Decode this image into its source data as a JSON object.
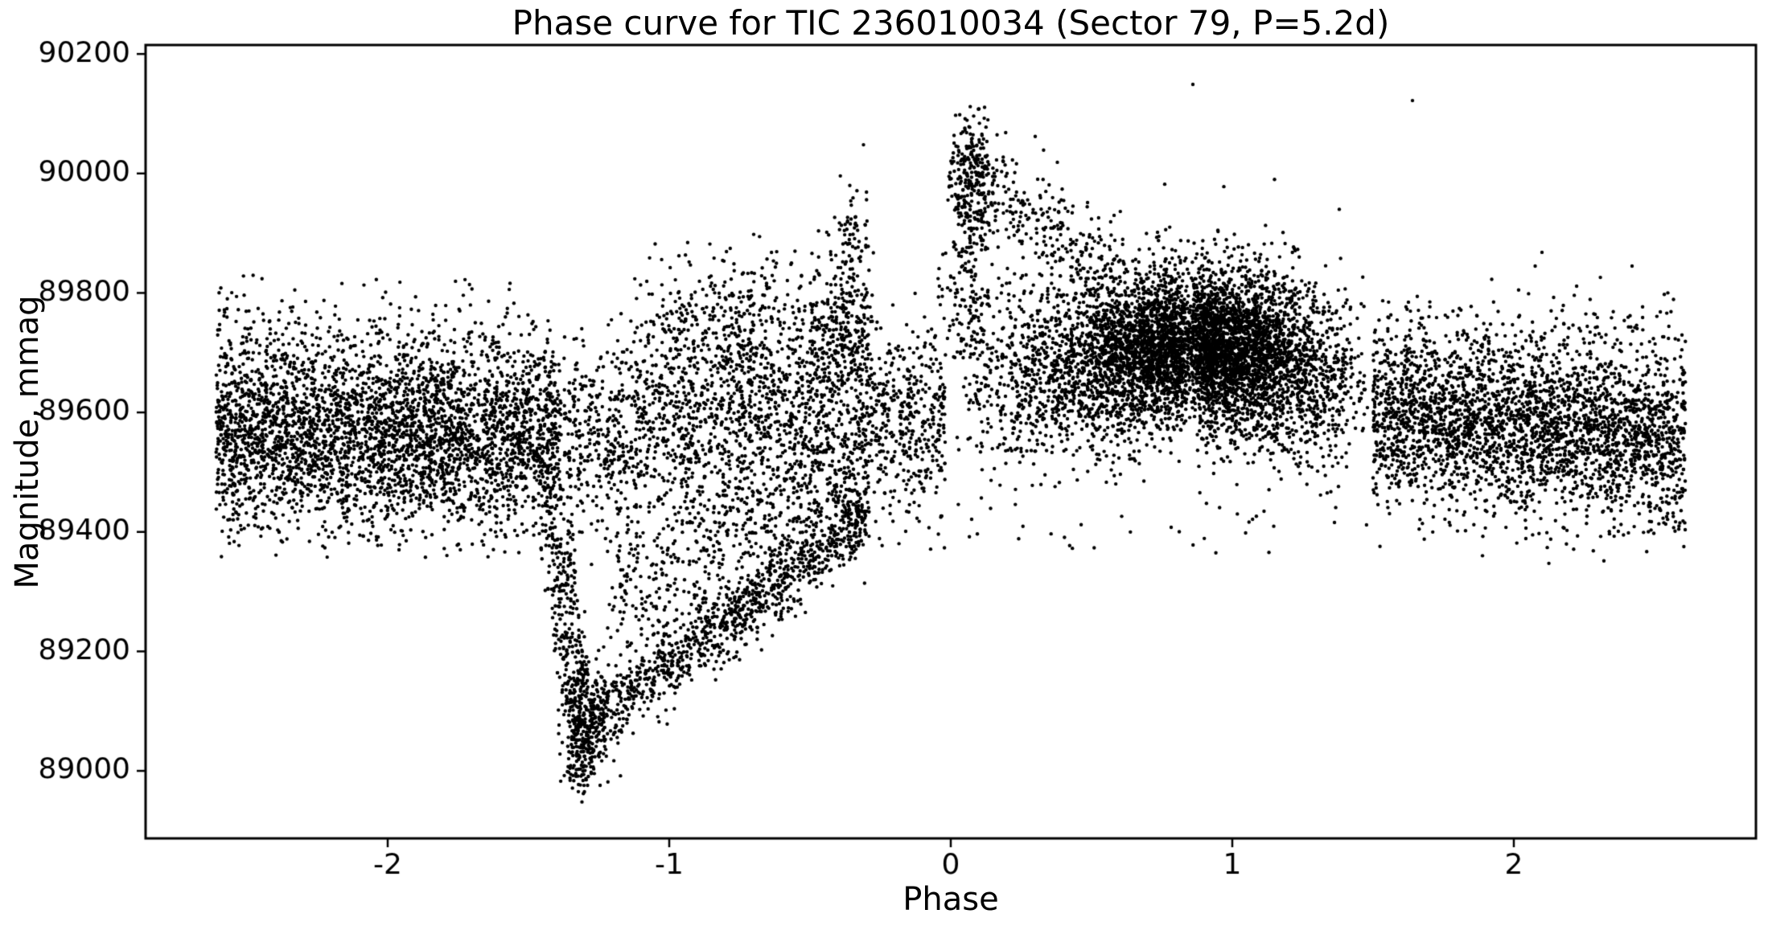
{
  "chart_data": {
    "type": "scatter",
    "title": "Phase curve for TIC 236010034 (Sector 79, P=5.2d)",
    "xlabel": "Phase",
    "ylabel": "Magnitude, mmag",
    "xlim": [
      -2.86,
      2.86
    ],
    "ylim": [
      88887,
      90215
    ],
    "xticks": [
      -2,
      -1,
      0,
      1,
      2
    ],
    "yticks": [
      89000,
      89200,
      89400,
      89600,
      89800,
      90000,
      90200
    ],
    "grid": false,
    "legend": "none",
    "background": "#ffffff",
    "marker": {
      "color": "#000000",
      "radius": 2.2
    },
    "axis_color": "#000000",
    "n_points_approx": 18500,
    "data_x_range": [
      -2.61,
      2.61
    ],
    "data_y_range": [
      88945,
      90150
    ],
    "seed": 42,
    "components": [
      {
        "name": "left-band",
        "type": "band",
        "n": 3600,
        "x": {
          "dist": "uniform",
          "a": -2.61,
          "b": -1.4
        },
        "y": {
          "m0": 89570,
          "m1": 89560,
          "sigma": 78
        },
        "clip": {
          "ymin": 89355,
          "ymax": 89845
        }
      },
      {
        "name": "left-upper-fringe",
        "type": "band",
        "n": 120,
        "x": {
          "dist": "uniform",
          "a": -2.61,
          "b": -1.45
        },
        "y": {
          "m0": 89755,
          "m1": 89750,
          "sigma": 45
        },
        "clip": {
          "ymax": 89830
        }
      },
      {
        "name": "mid-band",
        "type": "band",
        "n": 2000,
        "x": {
          "dist": "uniform",
          "a": -1.4,
          "b": -0.02
        },
        "y": {
          "m0": 89565,
          "m1": 89590,
          "sigma": 80
        },
        "clip": {
          "ymin": 89340,
          "ymax": 89800
        }
      },
      {
        "name": "plume",
        "type": "band",
        "n": 420,
        "x": {
          "dist": "tri",
          "a": -1.2,
          "b": -0.4,
          "mode": -0.75
        },
        "y": {
          "m0": 89735,
          "m1": 89750,
          "sigma": 65
        },
        "clip": {
          "ymax": 89895
        }
      },
      {
        "name": "shoulder",
        "type": "band",
        "n": 180,
        "x": {
          "dist": "uniform",
          "a": -0.5,
          "b": -0.28
        },
        "y": {
          "m0": 89720,
          "m1": 89720,
          "sigma": 55
        },
        "clip": {
          "ymax": 89905
        }
      },
      {
        "name": "pre-flare-column",
        "type": "column",
        "n": 150,
        "x": {
          "cx": -0.36,
          "sx": 0.045
        },
        "y": {
          "y0": 89640,
          "y1": 89930
        }
      },
      {
        "name": "pre-flare-top",
        "type": "cluster",
        "n": 12,
        "cx": -0.35,
        "cy": 89940,
        "sx": 0.03,
        "sy": 25
      },
      {
        "name": "eclipse-descent",
        "type": "diag",
        "n": 200,
        "x0": -1.44,
        "y0": 89480,
        "x1": -1.33,
        "y1": 89060,
        "sx": 0.018,
        "sy": 40
      },
      {
        "name": "eclipse-descent-2",
        "type": "diag",
        "n": 90,
        "x0": -1.37,
        "y0": 89440,
        "x1": -1.3,
        "y1": 89120,
        "sx": 0.012,
        "sy": 35
      },
      {
        "name": "eclipse-bottom",
        "type": "cluster",
        "n": 340,
        "cx": -1.3,
        "cy": 89075,
        "sx": 0.038,
        "sy": 55,
        "clip": {
          "ymin": 88960,
          "ymax": 89230
        }
      },
      {
        "name": "eclipse-recovery",
        "type": "diag",
        "n": 950,
        "x0": -1.27,
        "y0": 89085,
        "x1": -0.3,
        "y1": 89425,
        "sx": 0.01,
        "sy": 30
      },
      {
        "name": "recovery-fill",
        "type": "band",
        "n": 550,
        "x": {
          "dist": "uniform",
          "a": -1.22,
          "b": -0.3
        },
        "y": {
          "m0": 89290,
          "m1": 89470,
          "sigma": 70
        },
        "clip": {
          "ymin": 89080,
          "ymax": 89520
        }
      },
      {
        "name": "flare-core",
        "type": "cluster",
        "n": 300,
        "cx": 0.075,
        "cy": 89995,
        "sx": 0.045,
        "sy": 60,
        "clip": {
          "ymin": 89840,
          "ymax": 90112,
          "xmin": -0.01
        }
      },
      {
        "name": "flare-base",
        "type": "column",
        "n": 140,
        "x": {
          "cx": 0.06,
          "sx": 0.05
        },
        "y": {
          "y0": 89680,
          "y1": 89890
        }
      },
      {
        "name": "flare-decay",
        "type": "diag",
        "n": 240,
        "x0": 0.13,
        "y0": 89980,
        "x1": 0.6,
        "y1": 89830,
        "sx": 0.02,
        "sy": 45,
        "clip": {
          "ymax": 90040
        }
      },
      {
        "name": "hump-rise",
        "type": "band",
        "n": 2300,
        "x": {
          "dist": "tri",
          "a": 0.02,
          "b": 0.85,
          "mode": 0.8
        },
        "y": {
          "m0": 89630,
          "m1": 89720,
          "sigma": 75
        },
        "clip": {
          "ymin": 89400,
          "ymax": 89935
        }
      },
      {
        "name": "hump-fall",
        "type": "band",
        "n": 2600,
        "x": {
          "dist": "tri",
          "a": 0.85,
          "b": 1.5,
          "mode": 0.9
        },
        "y": {
          "m0": 89720,
          "m1": 89640,
          "sigma": 75
        },
        "clip": {
          "ymin": 89380,
          "ymax": 89920
        }
      },
      {
        "name": "hump-core",
        "type": "band",
        "n": 1300,
        "x": {
          "dist": "tri",
          "a": 0.45,
          "b": 1.25,
          "mode": 0.85
        },
        "y": {
          "m0": 89705,
          "m1": 89715,
          "sigma": 48
        },
        "clip": {
          "ymax": 89900
        }
      },
      {
        "name": "right-band",
        "type": "band",
        "n": 3000,
        "x": {
          "dist": "uniform",
          "a": 1.5,
          "b": 2.61
        },
        "y": {
          "m0": 89605,
          "m1": 89550,
          "sigma": 72
        },
        "clip": {
          "ymin": 89365,
          "ymax": 89830
        }
      },
      {
        "name": "right-upper-fringe",
        "type": "band",
        "n": 110,
        "x": {
          "dist": "uniform",
          "a": 1.55,
          "b": 2.61
        },
        "y": {
          "m0": 89755,
          "m1": 89740,
          "sigma": 40
        },
        "clip": {
          "ymax": 89850
        }
      },
      {
        "name": "low-sparse",
        "type": "band",
        "n": 90,
        "x": {
          "dist": "uniform",
          "a": -2.55,
          "b": 2.55
        },
        "y": {
          "m0": 89405,
          "m1": 89400,
          "sigma": 30
        },
        "clip": {
          "ymin": 89345
        }
      },
      {
        "name": "outliers",
        "type": "points",
        "pts": [
          [
            -0.31,
            90048
          ],
          [
            0.86,
            90149
          ],
          [
            1.64,
            90122
          ],
          [
            1.15,
            89990
          ],
          [
            0.76,
            89982
          ],
          [
            0.97,
            89978
          ],
          [
            -2.33,
            89805
          ],
          [
            2.42,
            89845
          ],
          [
            2.1,
            89868
          ],
          [
            1.38,
            89940
          ],
          [
            0.3,
            90062
          ],
          [
            0.1,
            90108
          ],
          [
            -0.7,
            89898
          ],
          [
            -1.05,
            89882
          ],
          [
            -1.31,
            88948
          ],
          [
            -1.305,
            88962
          ],
          [
            -1.295,
            88985
          ],
          [
            -1.33,
            89002
          ]
        ]
      }
    ]
  }
}
